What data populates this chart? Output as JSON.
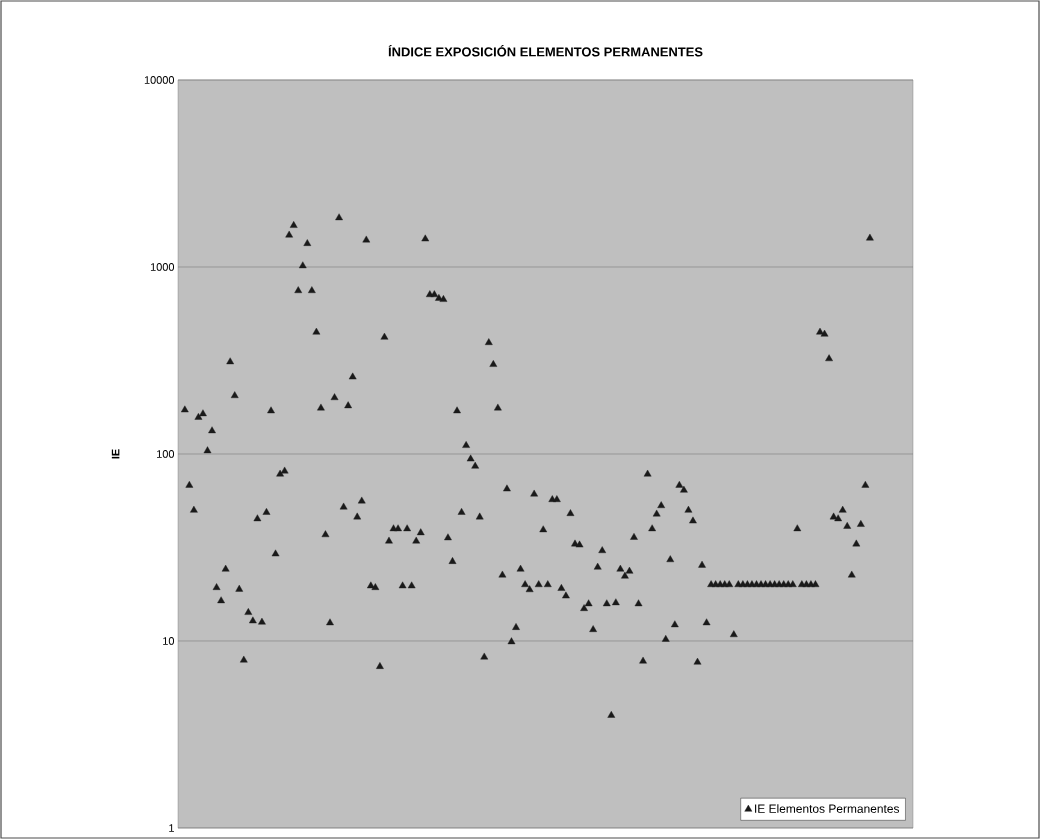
{
  "chart_data": {
    "type": "scatter",
    "title": "ÍNDICE EXPOSICIÓN ELEMENTOS PERMANENTES",
    "ylabel": "IE",
    "categories": [
      null,
      null,
      null,
      null,
      null,
      null,
      null,
      null,
      null,
      null,
      null,
      null,
      null,
      null,
      null,
      null,
      null,
      null,
      null,
      null,
      null,
      null,
      null,
      null,
      null,
      null,
      null,
      null,
      null,
      null,
      null,
      null,
      null,
      null,
      null,
      null,
      null,
      null,
      null,
      null,
      null,
      null,
      null,
      null,
      null,
      null,
      null,
      null,
      null,
      null,
      null,
      null,
      null,
      null,
      null,
      null,
      null,
      null,
      null,
      null,
      null,
      null,
      null,
      null,
      null,
      null,
      null,
      null,
      null,
      null,
      null,
      null,
      null,
      null,
      null,
      null,
      null,
      null,
      null,
      null,
      null,
      null,
      null,
      null,
      null,
      null,
      null,
      null,
      null,
      null,
      null,
      null,
      null,
      null,
      null,
      null,
      null,
      null,
      null,
      null,
      null,
      null,
      null,
      null,
      null,
      null,
      null,
      null,
      null,
      null,
      null,
      null,
      null,
      null,
      null,
      null,
      null,
      null,
      null,
      null,
      null,
      null,
      null,
      null,
      null,
      null,
      null,
      null,
      null,
      null,
      null,
      null,
      null,
      null,
      null,
      null,
      null,
      null,
      null,
      null,
      null,
      null,
      null,
      null,
      null,
      null,
      null,
      null,
      null,
      null,
      null,
      null,
      null,
      null,
      null,
      null,
      null,
      null,
      null,
      null,
      null,
      null
    ],
    "series": [
      {
        "name": "IE Elementos Permanentes",
        "color": "#1a1a1a",
        "values": [
          null,
          172,
          68,
          50,
          157,
          164,
          104,
          133,
          19.3,
          16.4,
          24.2,
          311,
          205,
          18.9,
          7.9,
          14.2,
          12.8,
          45,
          12.6,
          48.7,
          170,
          29.2,
          78,
          81,
          1480,
          1667,
          747,
          1014,
          1334,
          747,
          448,
          176,
          37,
          12.5,
          200,
          1832,
          52,
          181,
          258,
          46,
          56,
          1393,
          19.7,
          19.3,
          7.3,
          421,
          34.2,
          39.8,
          39.8,
          19.7,
          39.8,
          19.7,
          34.2,
          37.9,
          1412,
          711,
          711,
          679,
          670,
          35.6,
          26.6,
          170,
          48.7,
          111,
          94,
          86,
          46,
          8.2,
          394,
          301,
          176,
          22.5,
          65,
          9.9,
          11.8,
          24.2,
          20,
          18.8,
          61,
          20,
          39.3,
          20,
          57,
          57,
          19.1,
          17.4,
          48,
          33,
          32.6,
          14.9,
          15.8,
          11.5,
          24.8,
          30.4,
          15.8,
          4.0,
          16,
          24.2,
          22.2,
          23.6,
          35.8,
          15.8,
          7.8,
          78,
          39.8,
          47.7,
          52.9,
          10.2,
          27.2,
          12.2,
          68,
          64,
          50,
          43.8,
          7.7,
          25.4,
          12.5,
          20,
          20,
          20,
          20,
          20,
          10.8,
          20,
          20,
          20,
          20,
          20,
          20,
          20,
          20,
          20,
          20,
          20,
          20,
          20,
          39.8,
          20,
          20,
          20,
          20,
          448,
          437,
          323,
          46,
          45,
          50,
          41,
          22.5,
          33,
          42,
          68,
          1426,
          null,
          null,
          null,
          null,
          null,
          null,
          null,
          null,
          null
        ]
      }
    ],
    "log": "y",
    "ylim": [
      1,
      10000
    ],
    "yticks": [
      1,
      10,
      100,
      1000,
      10000
    ],
    "grid": "y",
    "legend": "bottom right",
    "marker": "triangle"
  }
}
